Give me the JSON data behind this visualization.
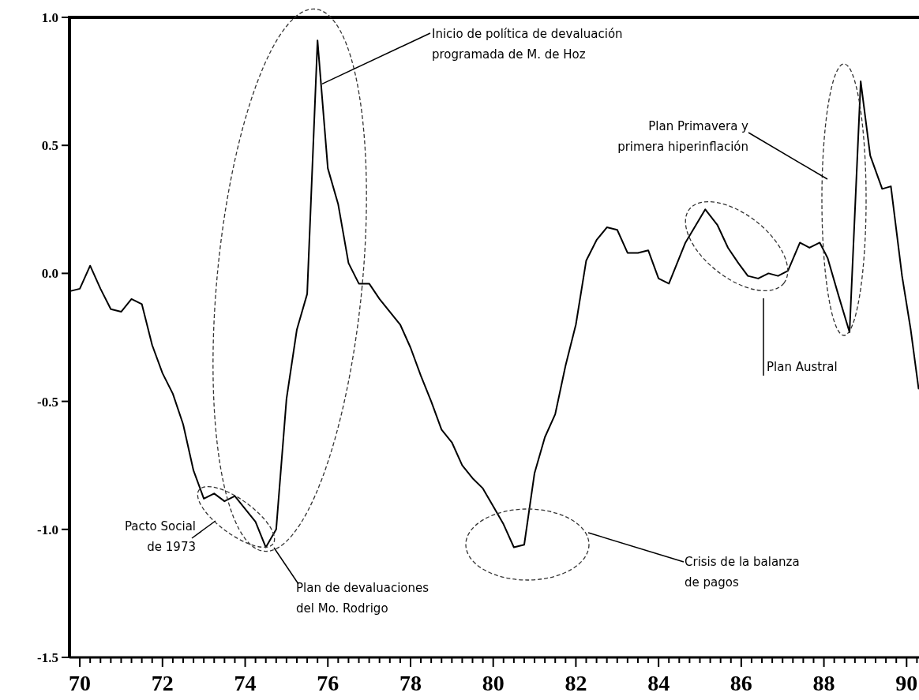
{
  "chart_data": {
    "type": "line",
    "x": [
      1969.75,
      1970,
      1970.25,
      1970.5,
      1970.75,
      1971,
      1971.25,
      1971.5,
      1971.75,
      1972,
      1972.25,
      1972.5,
      1972.75,
      1973,
      1973.25,
      1973.5,
      1973.75,
      1974,
      1974.25,
      1974.5,
      1974.75,
      1975,
      1975.25,
      1975.5,
      1975.75,
      1976,
      1976.25,
      1976.5,
      1976.75,
      1977,
      1977.25,
      1977.5,
      1977.75,
      1978,
      1978.25,
      1978.5,
      1978.75,
      1979,
      1979.25,
      1979.5,
      1979.75,
      1980,
      1980.25,
      1980.5,
      1980.75,
      1981,
      1981.25,
      1981.5,
      1981.75,
      1982,
      1982.25,
      1982.5,
      1982.75,
      1983,
      1983.25,
      1983.5,
      1983.75,
      1984,
      1984.25,
      1984.5,
      1984.65,
      1985.13,
      1985.42,
      1985.68,
      1985.93,
      1986.16,
      1986.41,
      1986.66,
      1986.89,
      1987.13,
      1987.42,
      1987.65,
      1987.9,
      1988.09,
      1988.36,
      1988.62,
      1988.89,
      1989.12,
      1989.41,
      1989.62,
      1989.89,
      1990.1,
      1990.29
    ],
    "series": [
      {
        "color": "#000000",
        "values": [
          -0.07,
          -0.06,
          0.03,
          -0.06,
          -0.14,
          -0.15,
          -0.1,
          -0.12,
          -0.28,
          -0.39,
          -0.47,
          -0.59,
          -0.77,
          -0.88,
          -0.86,
          -0.89,
          -0.87,
          -0.92,
          -0.97,
          -1.07,
          -1.0,
          -0.49,
          -0.22,
          -0.08,
          0.91,
          0.41,
          0.27,
          0.04,
          -0.04,
          -0.04,
          -0.1,
          -0.15,
          -0.2,
          -0.29,
          -0.4,
          -0.5,
          -0.61,
          -0.66,
          -0.75,
          -0.8,
          -0.84,
          -0.91,
          -0.98,
          -1.07,
          -1.06,
          -0.78,
          -0.64,
          -0.55,
          -0.36,
          -0.2,
          0.05,
          0.13,
          0.18,
          0.17,
          0.08,
          0.08,
          0.09,
          -0.02,
          -0.04,
          0.06,
          0.12,
          0.25,
          0.19,
          0.1,
          0.04,
          -0.01,
          -0.02,
          0.0,
          -0.01,
          0.01,
          0.12,
          0.1,
          0.12,
          0.06,
          -0.09,
          -0.23,
          0.75,
          0.46,
          0.33,
          0.34,
          -0.01,
          -0.22,
          -0.45
        ]
      }
    ],
    "xlim": [
      1969.75,
      1990.3
    ],
    "ylim": [
      -1.5,
      1.0
    ],
    "yticks": [
      {
        "value": 1.0,
        "label": "1.0"
      },
      {
        "value": 0.5,
        "label": "0.5"
      },
      {
        "value": 0,
        "label": "0.0"
      },
      {
        "value": -0.5,
        "label": "-0.5"
      },
      {
        "value": -1.0,
        "label": "-1.0"
      },
      {
        "value": -1.5,
        "label": "-1.5"
      }
    ],
    "xticks": [
      {
        "value": 1970,
        "label": "70"
      },
      {
        "value": 1970.25,
        "label": null
      },
      {
        "value": 1970.5,
        "label": null
      },
      {
        "value": 1970.75,
        "label": null
      },
      {
        "value": 1971,
        "label": null
      },
      {
        "value": 1971.25,
        "label": null
      },
      {
        "value": 1971.5,
        "label": null
      },
      {
        "value": 1971.75,
        "label": null
      },
      {
        "value": 1972,
        "label": "72"
      },
      {
        "value": 1972.25,
        "label": null
      },
      {
        "value": 1972.5,
        "label": null
      },
      {
        "value": 1972.75,
        "label": null
      },
      {
        "value": 1973,
        "label": null
      },
      {
        "value": 1973.25,
        "label": null
      },
      {
        "value": 1973.5,
        "label": null
      },
      {
        "value": 1973.75,
        "label": null
      },
      {
        "value": 1974,
        "label": "74"
      },
      {
        "value": 1974.25,
        "label": null
      },
      {
        "value": 1974.5,
        "label": null
      },
      {
        "value": 1974.75,
        "label": null
      },
      {
        "value": 1975,
        "label": null
      },
      {
        "value": 1975.25,
        "label": null
      },
      {
        "value": 1975.5,
        "label": null
      },
      {
        "value": 1975.75,
        "label": null
      },
      {
        "value": 1976,
        "label": "76"
      },
      {
        "value": 1976.25,
        "label": null
      },
      {
        "value": 1976.5,
        "label": null
      },
      {
        "value": 1976.75,
        "label": null
      },
      {
        "value": 1977,
        "label": null
      },
      {
        "value": 1977.25,
        "label": null
      },
      {
        "value": 1977.5,
        "label": null
      },
      {
        "value": 1977.75,
        "label": null
      },
      {
        "value": 1978,
        "label": "78"
      },
      {
        "value": 1978.25,
        "label": null
      },
      {
        "value": 1978.5,
        "label": null
      },
      {
        "value": 1978.75,
        "label": null
      },
      {
        "value": 1979,
        "label": null
      },
      {
        "value": 1979.25,
        "label": null
      },
      {
        "value": 1979.5,
        "label": null
      },
      {
        "value": 1979.75,
        "label": null
      },
      {
        "value": 1980,
        "label": "80"
      },
      {
        "value": 1980.25,
        "label": null
      },
      {
        "value": 1980.5,
        "label": null
      },
      {
        "value": 1980.75,
        "label": null
      },
      {
        "value": 1981,
        "label": null
      },
      {
        "value": 1981.25,
        "label": null
      },
      {
        "value": 1981.5,
        "label": null
      },
      {
        "value": 1981.75,
        "label": null
      },
      {
        "value": 1982,
        "label": "82"
      },
      {
        "value": 1982.25,
        "label": null
      },
      {
        "value": 1982.5,
        "label": null
      },
      {
        "value": 1982.75,
        "label": null
      },
      {
        "value": 1983,
        "label": null
      },
      {
        "value": 1983.25,
        "label": null
      },
      {
        "value": 1983.5,
        "label": null
      },
      {
        "value": 1983.75,
        "label": null
      },
      {
        "value": 1984,
        "label": "84"
      },
      {
        "value": 1984.25,
        "label": null
      },
      {
        "value": 1984.5,
        "label": null
      },
      {
        "value": 1984.75,
        "label": null
      },
      {
        "value": 1985,
        "label": null
      },
      {
        "value": 1985.25,
        "label": null
      },
      {
        "value": 1985.5,
        "label": null
      },
      {
        "value": 1985.75,
        "label": null
      },
      {
        "value": 1986,
        "label": "86"
      },
      {
        "value": 1986.25,
        "label": null
      },
      {
        "value": 1986.5,
        "label": null
      },
      {
        "value": 1986.75,
        "label": null
      },
      {
        "value": 1987,
        "label": null
      },
      {
        "value": 1987.25,
        "label": null
      },
      {
        "value": 1987.5,
        "label": null
      },
      {
        "value": 1987.75,
        "label": null
      },
      {
        "value": 1988,
        "label": "88"
      },
      {
        "value": 1988.25,
        "label": null
      },
      {
        "value": 1988.5,
        "label": null
      },
      {
        "value": 1988.75,
        "label": null
      },
      {
        "value": 1989,
        "label": null
      },
      {
        "value": 1989.25,
        "label": null
      },
      {
        "value": 1989.5,
        "label": null
      },
      {
        "value": 1989.75,
        "label": null
      },
      {
        "value": 1990,
        "label": "90"
      },
      {
        "value": 1990.25,
        "label": null
      }
    ],
    "annotations": [
      {
        "text": "Inicio de política de devaluación\nprogramada de M. de Hoz",
        "x": 1975.86,
        "y": 0.74
      },
      "Plan Primavera y\nprimera hiperinflación",
      "Plan Austral",
      "Pacto Social\nde 1973",
      "Plan de devaluaciones\ndel Mo. Rodrigo",
      "Crisis de la balanza\nde pagos"
    ]
  }
}
